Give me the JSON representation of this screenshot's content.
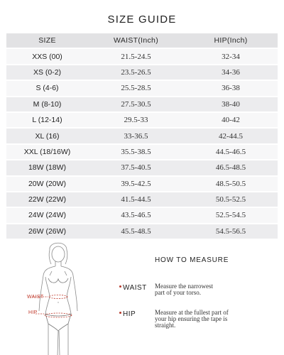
{
  "title": "SIZE GUIDE",
  "table": {
    "headers": [
      "SIZE",
      "WAIST(Inch)",
      "HIP(Inch)"
    ],
    "rows": [
      [
        "XXS (00)",
        "21.5-24.5",
        "32-34"
      ],
      [
        "XS (0-2)",
        "23.5-26.5",
        "34-36"
      ],
      [
        "S (4-6)",
        "25.5-28.5",
        "36-38"
      ],
      [
        "M (8-10)",
        "27.5-30.5",
        "38-40"
      ],
      [
        "L (12-14)",
        "29.5-33",
        "40-42"
      ],
      [
        "XL (16)",
        "33-36.5",
        "42-44.5"
      ],
      [
        "XXL (18/16W)",
        "35.5-38.5",
        "44.5-46.5"
      ],
      [
        "18W (18W)",
        "37.5-40.5",
        "46.5-48.5"
      ],
      [
        "20W (20W)",
        "39.5-42.5",
        "48.5-50.5"
      ],
      [
        "22W (22W)",
        "41.5-44.5",
        "50.5-52.5"
      ],
      [
        "24W (24W)",
        "43.5-46.5",
        "52.5-54.5"
      ],
      [
        "26W (26W)",
        "45.5-48.5",
        "54.5-56.5"
      ]
    ]
  },
  "figure": {
    "waist_label": "WAIST",
    "hip_label": "HIP",
    "accent_color": "#c0392b"
  },
  "how_to_measure": {
    "title": "HOW TO MEASURE",
    "waist": {
      "label": "WAIST",
      "lines": [
        "Measure the narrowest",
        "part of your torso."
      ]
    },
    "hip": {
      "label": "HIP",
      "lines": [
        "Measure at the fullest part of",
        "your hip ensuring the tape is",
        "straight."
      ]
    }
  }
}
